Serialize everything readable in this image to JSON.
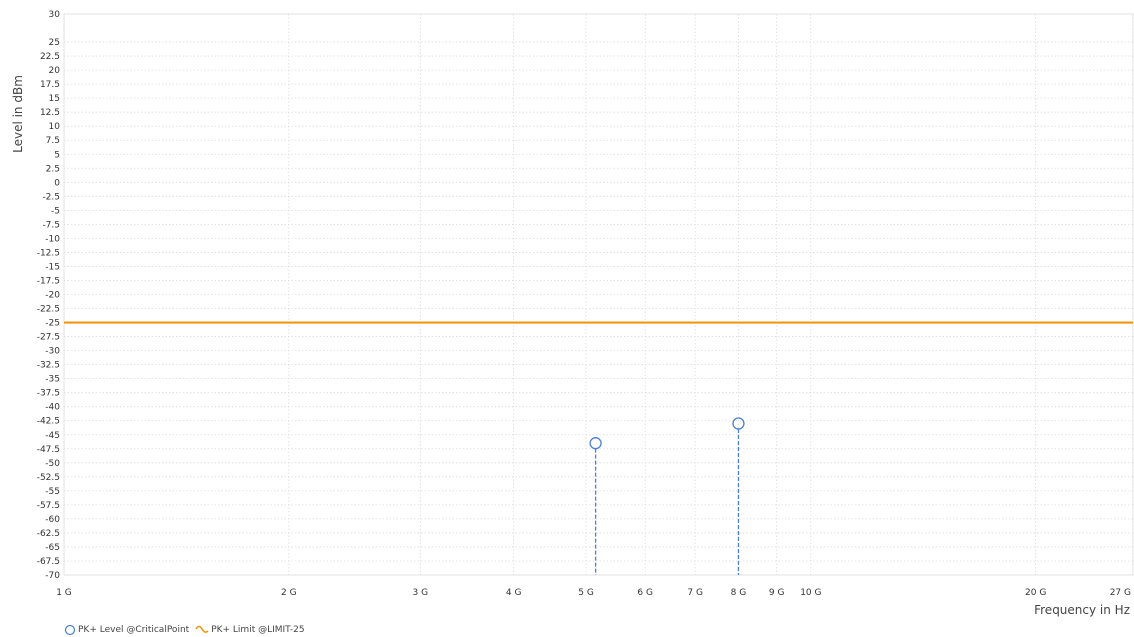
{
  "chart_data": {
    "type": "scatter",
    "xlabel": "Frequency in Hz",
    "ylabel": "Level in dBm",
    "x_scale": "log",
    "xlim": [
      1000000000,
      27000000000
    ],
    "ylim": [
      -70,
      30
    ],
    "x_ticks": [
      {
        "value": 1000000000,
        "label": "1 G"
      },
      {
        "value": 2000000000,
        "label": "2 G"
      },
      {
        "value": 3000000000,
        "label": "3 G"
      },
      {
        "value": 4000000000,
        "label": "4 G"
      },
      {
        "value": 5000000000,
        "label": "5 G"
      },
      {
        "value": 6000000000,
        "label": "6 G"
      },
      {
        "value": 7000000000,
        "label": "7 G"
      },
      {
        "value": 8000000000,
        "label": "8 G"
      },
      {
        "value": 9000000000,
        "label": "9 G"
      },
      {
        "value": 10000000000,
        "label": "10 G"
      },
      {
        "value": 20000000000,
        "label": "20 G"
      },
      {
        "value": 27000000000,
        "label": "27 G"
      }
    ],
    "y_ticks": [
      30,
      25,
      22.5,
      20,
      17.5,
      15,
      12.5,
      10,
      7.5,
      5,
      2.5,
      0,
      -2.5,
      -5,
      -7.5,
      -10,
      -12.5,
      -15,
      -17.5,
      -20,
      -22.5,
      -25,
      -27.5,
      -30,
      -32.5,
      -35,
      -37.5,
      -40,
      -42.5,
      -45,
      -47.5,
      -50,
      -52.5,
      -55,
      -57.5,
      -60,
      -62.5,
      -65,
      -67.5,
      -70
    ],
    "grid": true,
    "series": [
      {
        "name": "PK+ Level @CriticalPoint",
        "type": "stem",
        "marker": "open-circle",
        "color": "#4a7fd4",
        "points": [
          {
            "x": 5150000000,
            "y": -46.5
          },
          {
            "x": 8000000000,
            "y": -43
          }
        ]
      },
      {
        "name": "PK+ Limit @LIMIT-25",
        "type": "line",
        "color": "#f0960f",
        "points": [
          {
            "x": 1000000000,
            "y": -25
          },
          {
            "x": 27000000000,
            "y": -25
          }
        ]
      }
    ],
    "legend_position": "bottom-left"
  }
}
